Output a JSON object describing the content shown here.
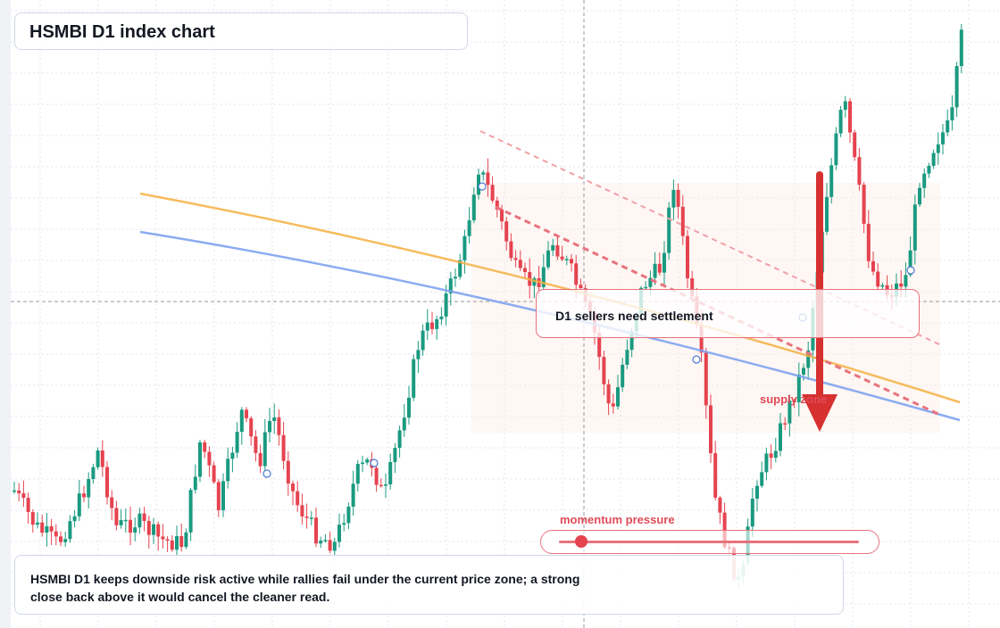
{
  "title": "HSMBI D1 index chart",
  "callout": "D1 sellers need settlement",
  "supply_label": "supply zone",
  "momentum_label": "momentum pressure",
  "momentum_level": 0.05,
  "footer_text": "HSMBI D1 keeps downside risk active while rallies fail under the current price zone; a strong close back above it would cancel the cleaner read.",
  "colors": {
    "up": "#1a9a80",
    "down": "#e5434f",
    "ma_fast": "#f5b041",
    "ma_slow": "#7fa3f0",
    "accent": "#d63030"
  },
  "chart_data": {
    "type": "candlestick",
    "title": "HSMBI D1 index chart",
    "x_axis": "daily bars (no labels shown)",
    "y_axis": "price (no labels shown)",
    "grid": true,
    "series": [
      {
        "name": "",
        "kind": "moving-average",
        "color": "#f5b041"
      },
      {
        "name": "",
        "kind": "moving-average",
        "color": "#7fa3f0"
      }
    ],
    "annotations": [
      "D1 sellers need settlement",
      "supply zone",
      "momentum pressure",
      "downward arrow",
      "dashed descending trendlines"
    ]
  }
}
